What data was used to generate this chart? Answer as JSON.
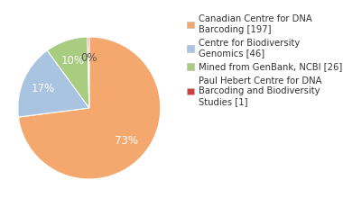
{
  "labels": [
    "Canadian Centre for DNA\nBarcoding [197]",
    "Centre for Biodiversity\nGenomics [46]",
    "Mined from GenBank, NCBI [26]",
    "Paul Hebert Centre for DNA\nBarcoding and Biodiversity\nStudies [1]"
  ],
  "values": [
    197,
    46,
    26,
    1
  ],
  "colors": [
    "#f5a86e",
    "#a8c4e0",
    "#a8cc80",
    "#d04040"
  ],
  "startangle": 90,
  "background_color": "#ffffff",
  "text_color": "#333333",
  "legend_fontsize": 7.2,
  "pct_fontsize": 8.5,
  "counterclock": false
}
